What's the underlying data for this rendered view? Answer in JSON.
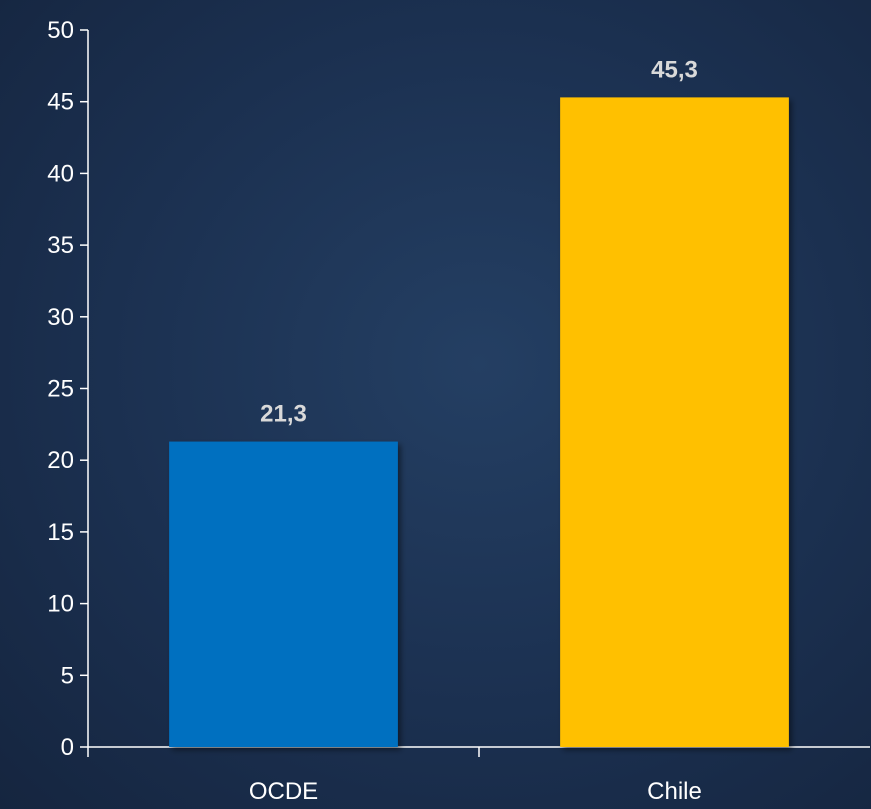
{
  "chart_data": {
    "type": "bar",
    "categories": [
      "OCDE",
      "Chile"
    ],
    "values": [
      21.3,
      45.3
    ],
    "data_labels": [
      "21,3",
      "45,3"
    ],
    "bar_colors": [
      "#0070c0",
      "#ffc000"
    ],
    "title": "",
    "xlabel": "",
    "ylabel": "",
    "ylim": [
      0,
      50
    ],
    "y_ticks": [
      0,
      5,
      10,
      15,
      20,
      25,
      30,
      35,
      40,
      45,
      50
    ],
    "grid": false,
    "legend": "none"
  },
  "colors": {
    "background": "#1b3050",
    "axis": "#ffffff",
    "tick_text": "#ffffff",
    "data_label_text": "#d9d9d9"
  }
}
